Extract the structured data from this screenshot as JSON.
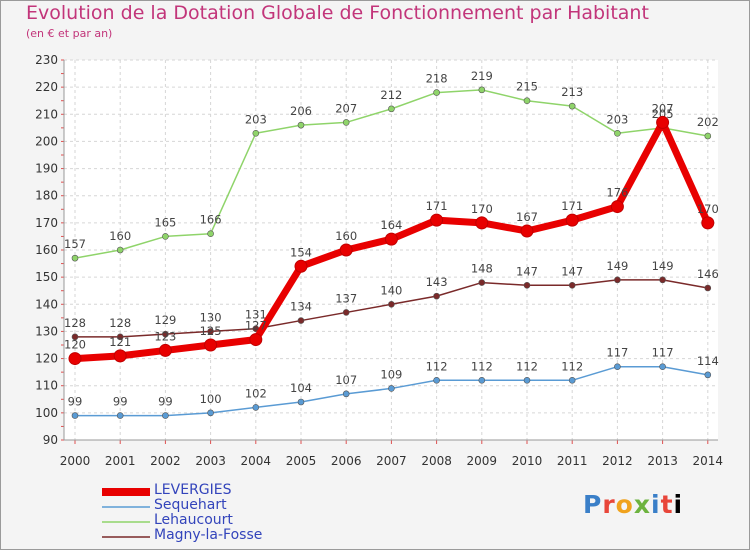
{
  "header": {
    "title": "Evolution de la Dotation Globale de Fonctionnement par Habitant",
    "subtitle": "(en € et par an)"
  },
  "logo": {
    "letters": [
      "P",
      "r",
      "o",
      "x",
      "i",
      "t",
      "i"
    ]
  },
  "chart_data": {
    "type": "line",
    "x": [
      2000,
      2001,
      2002,
      2003,
      2004,
      2005,
      2006,
      2007,
      2008,
      2009,
      2010,
      2011,
      2012,
      2013,
      2014
    ],
    "xlabel": "",
    "ylabel": "",
    "ylim": [
      90,
      230
    ],
    "yticks": [
      90,
      100,
      110,
      120,
      130,
      140,
      150,
      160,
      170,
      180,
      190,
      200,
      210,
      220,
      230
    ],
    "grid": true,
    "legend_position": "bottom-left",
    "series": [
      {
        "name": "Lehaucourt",
        "color": "#8fd46a",
        "values": [
          157,
          160,
          165,
          166,
          203,
          206,
          207,
          212,
          218,
          219,
          215,
          213,
          203,
          205,
          202
        ]
      },
      {
        "name": "Magny-la-Fosse",
        "color": "#7a2a2a",
        "values": [
          128,
          128,
          129,
          130,
          131,
          134,
          137,
          140,
          143,
          148,
          147,
          147,
          149,
          149,
          146
        ]
      },
      {
        "name": "Sequehart",
        "color": "#5a9bd4",
        "values": [
          99,
          99,
          99,
          100,
          102,
          104,
          107,
          109,
          112,
          112,
          112,
          112,
          117,
          117,
          114
        ]
      },
      {
        "name": "LEVERGIES",
        "color": "#e80000",
        "values": [
          120,
          121,
          123,
          125,
          127,
          154,
          160,
          164,
          171,
          170,
          167,
          171,
          176,
          207,
          170
        ]
      }
    ],
    "legend_order": [
      "LEVERGIES",
      "Sequehart",
      "Lehaucourt",
      "Magny-la-Fosse"
    ]
  }
}
